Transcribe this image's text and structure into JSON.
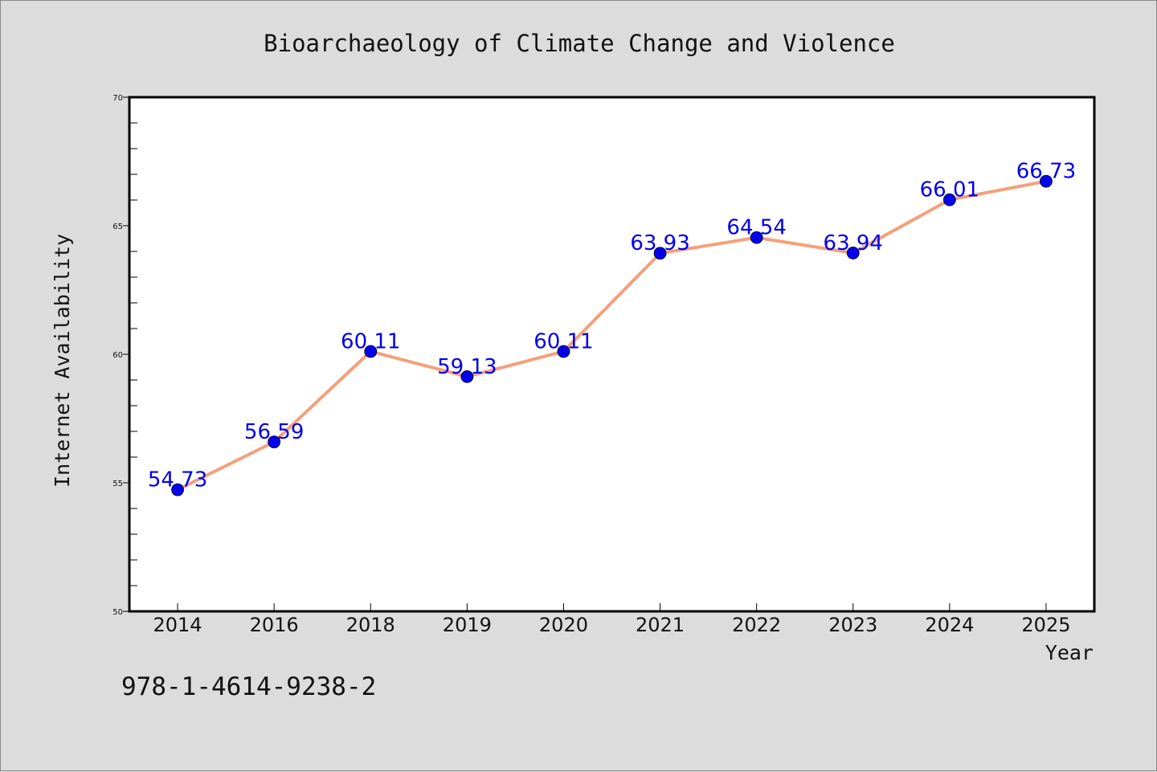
{
  "chart_data": {
    "type": "line",
    "title": "Bioarchaeology of Climate Change and Violence",
    "xlabel": "Year",
    "ylabel": "Internet Availability",
    "categories": [
      "2014",
      "2016",
      "2018",
      "2019",
      "2020",
      "2021",
      "2022",
      "2023",
      "2024",
      "2025"
    ],
    "values": [
      54.73,
      56.59,
      60.11,
      59.13,
      60.11,
      63.93,
      64.54,
      63.94,
      66.01,
      66.73
    ],
    "data_labels": [
      "54.73",
      "56.59",
      "60.11",
      "59.13",
      "60.11",
      "63.93",
      "64.54",
      "63.94",
      "66.01",
      "66.73"
    ],
    "ylim": [
      50,
      70
    ],
    "yticks": [
      50,
      55,
      60,
      65,
      70
    ],
    "grid": false,
    "legend": "none",
    "colors": {
      "line": "#f4a07a",
      "marker": "#0000ee",
      "label": "#0000ee",
      "background": "#dcdcdc",
      "plot_background": "#ffffff"
    }
  },
  "footer": {
    "isbn": "978-1-4614-9238-2"
  }
}
